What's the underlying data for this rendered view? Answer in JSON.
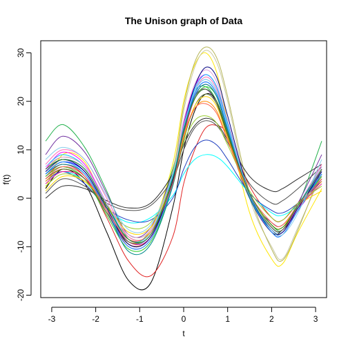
{
  "chart_data": {
    "type": "line",
    "title": "The Unison graph of Data",
    "xlabel": "t",
    "ylabel": "f(t)",
    "xlim": [
      -3.25,
      3.25
    ],
    "ylim": [
      -20.5,
      32.5
    ],
    "x_ticks": [
      -3,
      -2,
      -1,
      0,
      1,
      2,
      3
    ],
    "y_ticks": [
      -20,
      -10,
      0,
      10,
      20,
      30
    ],
    "x_tick_labels": [
      "-3",
      "-2",
      "-1",
      "0",
      "1",
      "2",
      "3"
    ],
    "y_tick_labels": [
      "-20",
      "-10",
      "0",
      "10",
      "20",
      "30"
    ],
    "x": [
      -3.14,
      -2.75,
      -2.25,
      -1.75,
      -1.25,
      -0.75,
      -0.25,
      0.0,
      0.25,
      0.5,
      0.75,
      1.0,
      1.5,
      2.0,
      2.25,
      2.6,
      3.14
    ],
    "series": [
      {
        "color": "#22b14c",
        "values": [
          11.8,
          15.2,
          10.5,
          1.5,
          -8.5,
          -6.5,
          6.0,
          15.0,
          22.0,
          23.0,
          20.0,
          13.0,
          0.5,
          -5.5,
          -6.5,
          -1.5,
          11.8
        ]
      },
      {
        "color": "#7030a0",
        "values": [
          9.0,
          12.8,
          9.5,
          1.0,
          -7.5,
          -6.0,
          5.5,
          14.5,
          21.0,
          22.5,
          19.5,
          12.5,
          0.0,
          -5.0,
          -5.5,
          -1.0,
          9.0
        ]
      },
      {
        "color": "#ffe600",
        "values": [
          2.0,
          9.0,
          7.5,
          -2.0,
          -9.0,
          -6.5,
          7.0,
          20.0,
          27.5,
          30.0,
          26.0,
          16.0,
          -3.0,
          -12.5,
          -13.5,
          -7.0,
          2.0
        ]
      },
      {
        "color": "#c8c8a0",
        "values": [
          5.0,
          8.0,
          6.0,
          -1.5,
          -8.0,
          -7.0,
          5.0,
          18.0,
          27.0,
          30.5,
          28.0,
          20.0,
          0.0,
          -10.0,
          -12.5,
          -6.0,
          5.0
        ]
      },
      {
        "color": "#b5b55a",
        "values": [
          6.0,
          8.5,
          6.5,
          -1.0,
          -7.5,
          -6.5,
          5.5,
          19.0,
          28.0,
          31.2,
          29.0,
          21.0,
          1.0,
          -10.5,
          -12.8,
          -6.5,
          6.0
        ]
      },
      {
        "color": "#000000",
        "values": [
          2.0,
          6.0,
          3.0,
          -7.0,
          -17.0,
          -17.5,
          -2.0,
          10.0,
          18.0,
          21.5,
          20.0,
          13.5,
          0.0,
          -7.0,
          -6.5,
          -2.5,
          6.0
        ]
      },
      {
        "color": "#e02020",
        "values": [
          4.5,
          7.0,
          4.5,
          -4.0,
          -13.0,
          -16.0,
          -8.0,
          3.0,
          10.0,
          14.5,
          15.0,
          13.0,
          2.5,
          -4.0,
          -4.5,
          -1.0,
          4.5
        ]
      },
      {
        "color": "#00ffff",
        "values": [
          3.0,
          5.5,
          3.5,
          -2.0,
          -5.0,
          -4.0,
          0.5,
          5.0,
          8.0,
          9.0,
          8.5,
          6.5,
          1.0,
          -3.0,
          -3.5,
          -1.5,
          3.0
        ]
      },
      {
        "color": "#1f3fbf",
        "values": [
          3.5,
          5.5,
          3.0,
          -2.0,
          -4.5,
          -4.5,
          0.0,
          6.0,
          10.5,
          12.0,
          11.0,
          8.0,
          1.0,
          -2.5,
          -3.0,
          -1.0,
          3.5
        ]
      },
      {
        "color": "#2b2b2b",
        "values": [
          0.0,
          2.5,
          2.0,
          -0.5,
          -2.0,
          -1.0,
          5.0,
          11.0,
          15.0,
          16.5,
          15.5,
          12.0,
          4.5,
          1.5,
          2.0,
          4.0,
          7.0
        ]
      },
      {
        "color": "#4d4d4d",
        "values": [
          1.0,
          4.0,
          2.5,
          -1.0,
          -2.5,
          -1.5,
          4.0,
          10.0,
          14.5,
          16.0,
          15.0,
          11.5,
          3.0,
          -1.0,
          -0.5,
          2.0,
          6.5
        ]
      },
      {
        "color": "#ff00ff",
        "values": [
          6.0,
          9.5,
          7.0,
          -1.0,
          -8.5,
          -7.5,
          4.5,
          15.5,
          23.0,
          25.5,
          23.0,
          15.5,
          1.0,
          -6.5,
          -7.0,
          -2.0,
          6.0
        ]
      },
      {
        "color": "#ff69b4",
        "values": [
          7.0,
          10.0,
          8.0,
          0.0,
          -8.0,
          -7.0,
          4.0,
          14.0,
          22.0,
          25.0,
          22.5,
          15.0,
          0.5,
          -6.0,
          -6.5,
          -1.5,
          7.0
        ]
      },
      {
        "color": "#0000ff",
        "values": [
          5.0,
          7.5,
          5.5,
          -2.0,
          -9.5,
          -8.0,
          3.5,
          14.0,
          21.5,
          24.0,
          21.5,
          14.5,
          0.5,
          -6.5,
          -7.0,
          -2.0,
          5.0
        ]
      },
      {
        "color": "#6495ed",
        "values": [
          5.5,
          8.0,
          6.0,
          -1.5,
          -9.0,
          -7.5,
          4.0,
          14.5,
          22.0,
          24.5,
          22.0,
          15.0,
          1.0,
          -6.0,
          -6.5,
          -1.5,
          5.5
        ]
      },
      {
        "color": "#8a2be2",
        "values": [
          4.0,
          6.5,
          4.5,
          -3.0,
          -10.0,
          -8.5,
          3.0,
          13.5,
          21.0,
          23.5,
          21.0,
          14.0,
          0.0,
          -7.0,
          -7.5,
          -2.5,
          4.0
        ]
      },
      {
        "color": "#32cd32",
        "values": [
          4.5,
          6.5,
          4.0,
          -3.5,
          -10.5,
          -9.0,
          2.5,
          13.0,
          20.5,
          23.0,
          21.0,
          14.0,
          0.5,
          -6.5,
          -7.0,
          -2.0,
          4.5
        ]
      },
      {
        "color": "#ff8c00",
        "values": [
          3.5,
          6.0,
          4.0,
          -3.0,
          -9.5,
          -8.0,
          3.0,
          12.5,
          18.5,
          20.0,
          18.0,
          12.0,
          0.5,
          -5.5,
          -6.0,
          -2.0,
          3.5
        ]
      },
      {
        "color": "#00bfff",
        "values": [
          6.5,
          9.0,
          6.5,
          -1.0,
          -8.5,
          -7.0,
          4.5,
          15.0,
          22.5,
          25.5,
          23.0,
          15.5,
          1.0,
          -6.0,
          -6.5,
          -1.5,
          6.5
        ]
      },
      {
        "color": "#008b8b",
        "values": [
          5.0,
          7.0,
          5.0,
          -2.5,
          -11.0,
          -9.5,
          2.5,
          13.5,
          21.0,
          23.5,
          21.0,
          14.0,
          0.0,
          -6.5,
          -7.0,
          -2.0,
          5.0
        ]
      },
      {
        "color": "#ff1493",
        "values": [
          3.0,
          5.5,
          4.0,
          -2.5,
          -9.0,
          -8.0,
          3.0,
          13.0,
          20.5,
          22.5,
          20.0,
          13.5,
          0.5,
          -6.0,
          -6.5,
          -2.0,
          3.0
        ]
      },
      {
        "color": "#9acd32",
        "values": [
          2.5,
          5.0,
          3.5,
          -2.0,
          -6.0,
          -5.0,
          3.5,
          11.5,
          16.0,
          17.0,
          15.5,
          11.0,
          1.5,
          -4.0,
          -4.5,
          -1.0,
          2.5
        ]
      },
      {
        "color": "#556b2f",
        "values": [
          4.0,
          6.0,
          4.0,
          -3.0,
          -9.0,
          -7.5,
          3.0,
          12.0,
          19.0,
          21.5,
          19.5,
          13.0,
          0.5,
          -6.0,
          -6.5,
          -1.5,
          4.0
        ]
      },
      {
        "color": "#ffd700",
        "values": [
          1.5,
          4.5,
          3.5,
          -1.5,
          -7.0,
          -6.0,
          3.5,
          12.5,
          19.0,
          21.0,
          19.0,
          12.5,
          0.5,
          -5.5,
          -6.0,
          -1.5,
          1.5
        ]
      },
      {
        "color": "#dda0dd",
        "values": [
          6.5,
          8.5,
          6.5,
          -1.0,
          -7.5,
          -6.5,
          5.0,
          16.0,
          23.5,
          26.5,
          24.0,
          16.0,
          1.0,
          -6.5,
          -7.0,
          -2.0,
          6.5
        ]
      },
      {
        "color": "#1e90ff",
        "values": [
          5.0,
          7.5,
          5.0,
          -2.5,
          -10.0,
          -8.5,
          3.0,
          14.0,
          21.5,
          24.0,
          21.5,
          14.5,
          0.5,
          -7.0,
          -7.5,
          -2.5,
          5.0
        ]
      },
      {
        "color": "#000080",
        "values": [
          5.5,
          8.0,
          5.5,
          -2.0,
          -9.5,
          -8.0,
          3.5,
          15.0,
          23.0,
          27.0,
          25.0,
          17.0,
          1.0,
          -6.5,
          -7.0,
          -2.0,
          5.5
        ]
      },
      {
        "color": "#ff6347",
        "values": [
          4.0,
          6.5,
          4.5,
          -2.5,
          -8.5,
          -7.0,
          3.0,
          13.0,
          18.5,
          19.5,
          17.5,
          12.0,
          1.0,
          -5.0,
          -5.5,
          -1.5,
          4.0
        ]
      },
      {
        "color": "#87ceeb",
        "values": [
          8.0,
          10.5,
          8.0,
          0.5,
          -6.5,
          -5.5,
          5.0,
          15.0,
          22.0,
          24.5,
          22.0,
          15.0,
          1.0,
          -6.5,
          -7.5,
          -3.0,
          8.0
        ]
      },
      {
        "color": "#228b22",
        "values": [
          6.0,
          8.0,
          6.0,
          -1.5,
          -8.5,
          -7.5,
          4.0,
          14.0,
          20.5,
          22.5,
          20.0,
          13.5,
          1.0,
          -5.5,
          -6.0,
          -1.5,
          6.0
        ]
      }
    ]
  }
}
